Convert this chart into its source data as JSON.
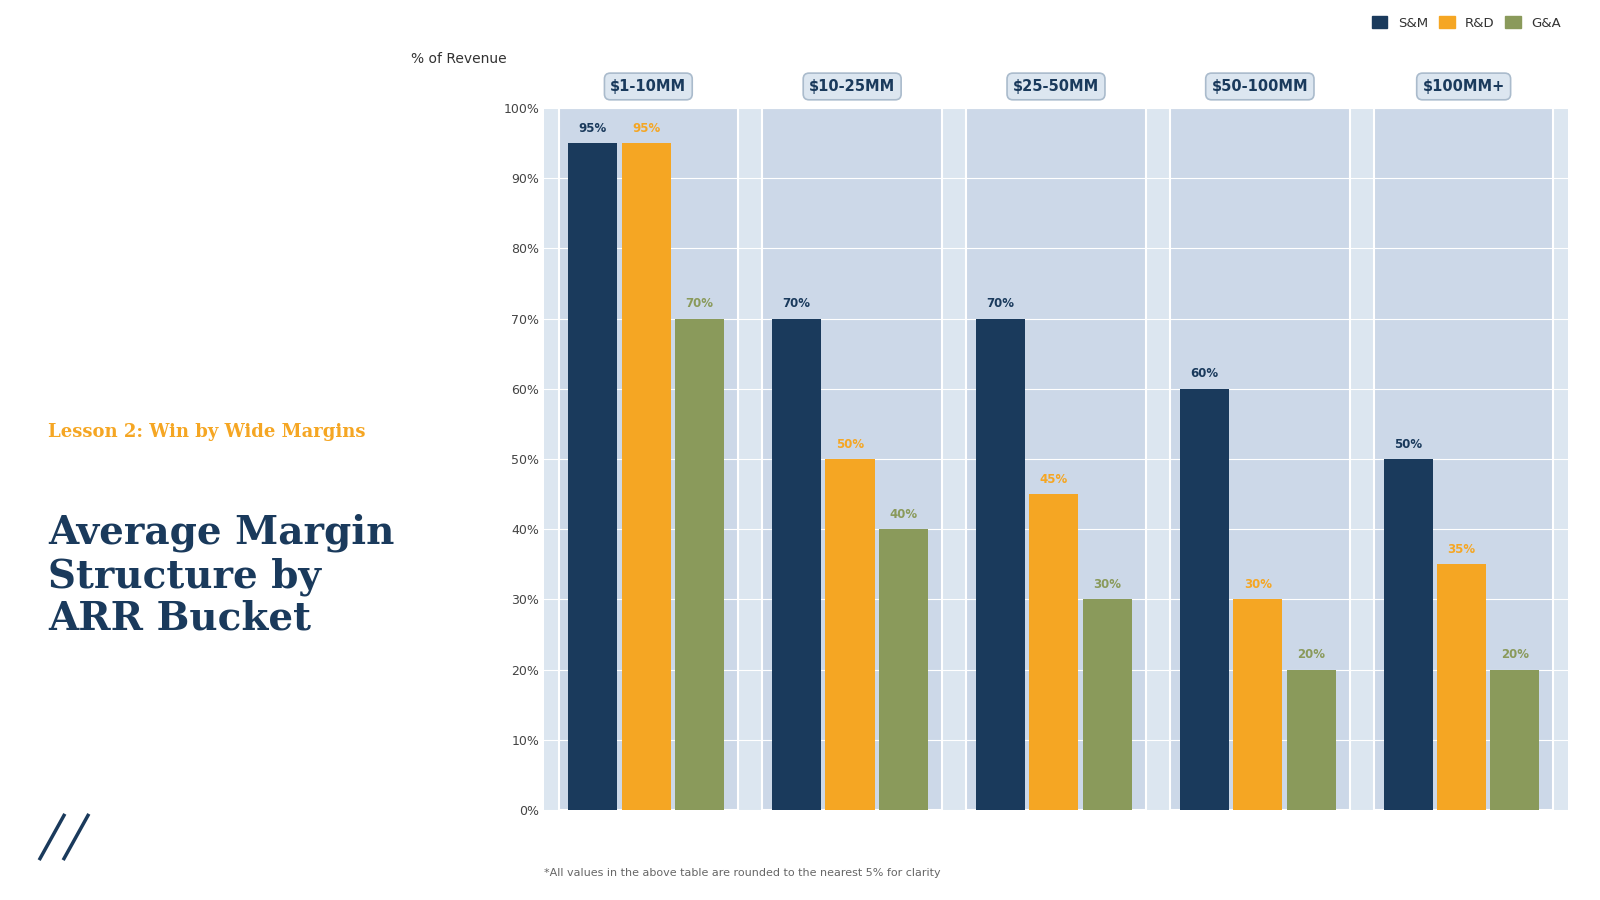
{
  "groups": [
    "$1-10MM",
    "$10-25MM",
    "$25-50MM",
    "$50-100MM",
    "$100MM+"
  ],
  "series": {
    "S&M": [
      95,
      70,
      70,
      60,
      50
    ],
    "R&D": [
      95,
      50,
      45,
      30,
      35
    ],
    "G&A": [
      70,
      40,
      30,
      20,
      20
    ]
  },
  "colors": {
    "S&M": "#1a3a5c",
    "R&D": "#f5a623",
    "G&A": "#8a9a5b"
  },
  "ylabel": "% of Revenue",
  "ylim": [
    0,
    100
  ],
  "yticks": [
    0,
    10,
    20,
    30,
    40,
    50,
    60,
    70,
    80,
    90,
    100
  ],
  "background_chart": "#dce6f0",
  "background_left": "#ffffff",
  "group_bg": "#ccd8e8",
  "subtitle": "Lesson 2: Win by Wide Margins",
  "title": "Average Margin\nStructure by\nARR Bucket",
  "subtitle_color": "#f5a623",
  "title_color": "#1a3a5c",
  "footnote": "*All values in the above table are rounded to the nearest 5% for clarity",
  "legend_labels": [
    "S&M",
    "R&D",
    "G&A"
  ]
}
